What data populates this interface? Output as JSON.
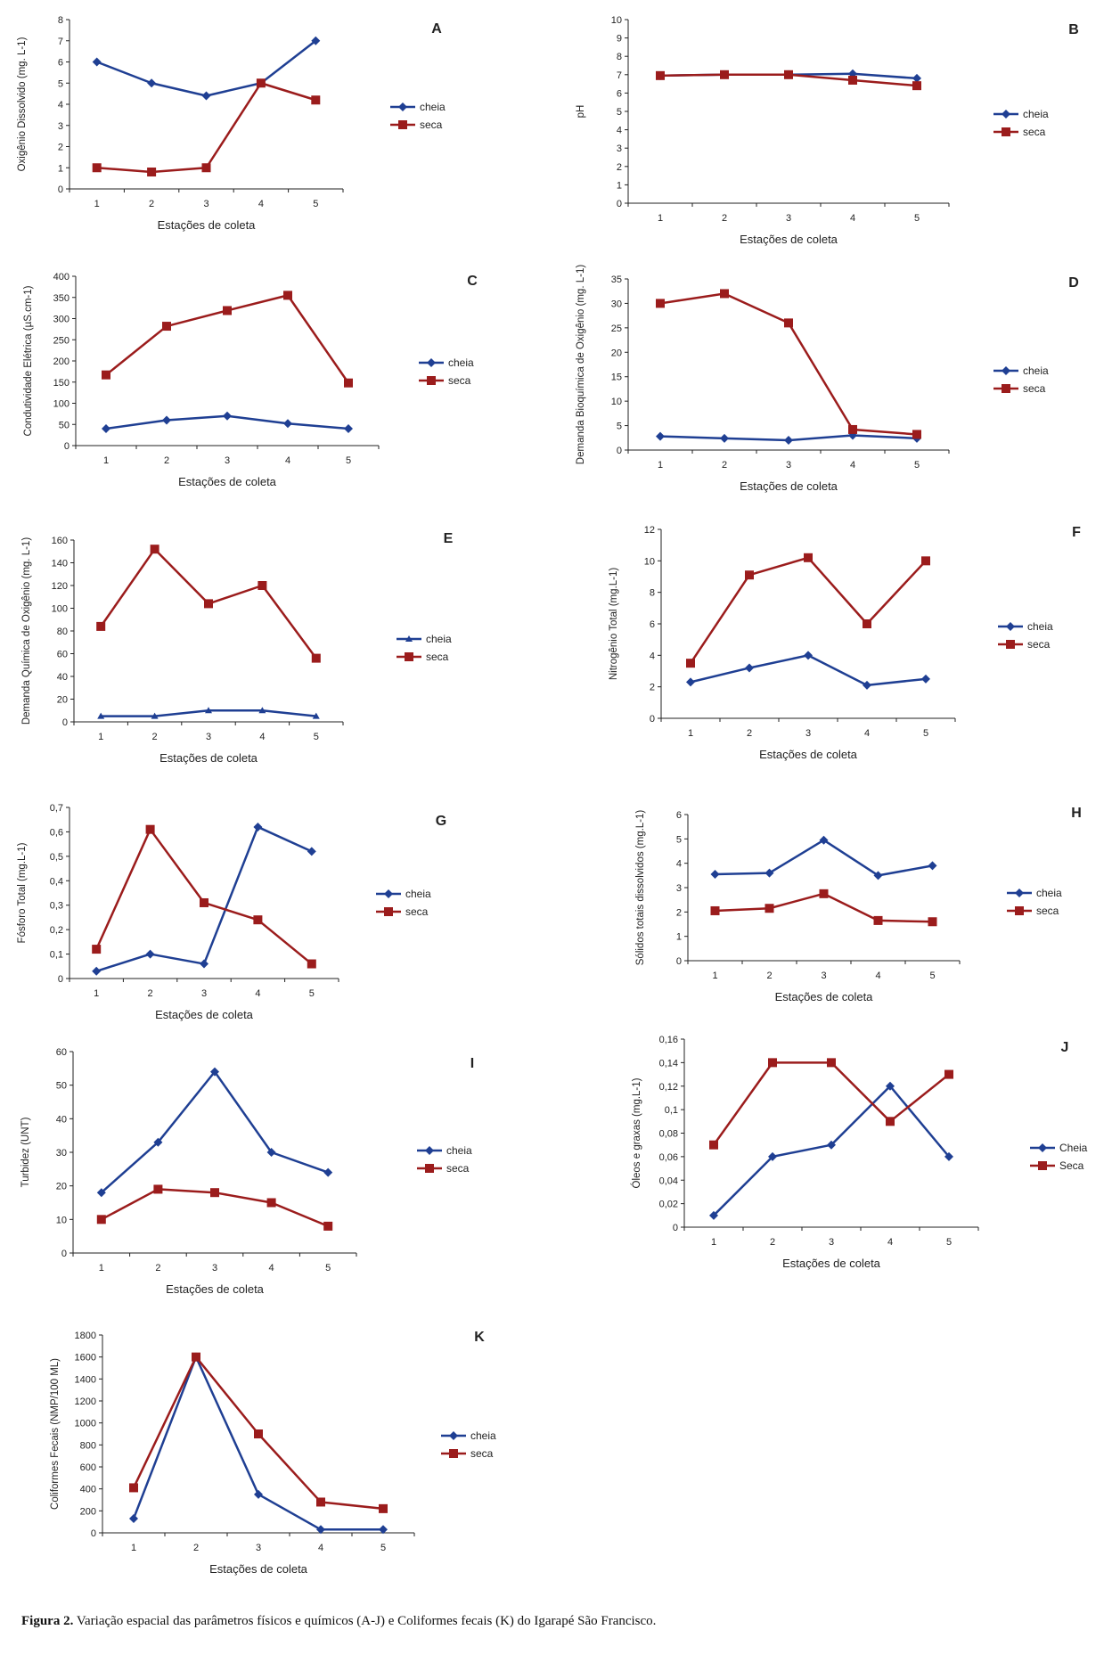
{
  "caption": {
    "label": "Figura 2.",
    "text": "Variação  espacial das parâmetros físicos e químicos (A-J) e Coliformes fecais (K) do Igarapé São Francisco."
  },
  "colors": {
    "cheia": "#1f3f93",
    "seca": "#9b1c1c",
    "axis": "#222222"
  },
  "chart_data": [
    {
      "letter": "A",
      "type": "line",
      "categories": [
        "1",
        "2",
        "3",
        "4",
        "5"
      ],
      "ylabel": "Oxigênio Dissolvido (mg. L-1)",
      "xlabel": "Estações de coleta",
      "ylim": [
        0,
        8
      ],
      "yticks": [
        "0",
        "1",
        "2",
        "3",
        "4",
        "5",
        "6",
        "7",
        "8"
      ],
      "series": [
        {
          "name": "cheia",
          "marker": "diamond",
          "values": [
            6,
            5,
            4.4,
            5,
            7
          ]
        },
        {
          "name": "seca",
          "marker": "square",
          "values": [
            1,
            0.8,
            1,
            5,
            4.2
          ]
        }
      ]
    },
    {
      "letter": "B",
      "type": "line",
      "categories": [
        "1",
        "2",
        "3",
        "4",
        "5"
      ],
      "ylabel": "pH",
      "xlabel": "Estações de coleta",
      "ylim": [
        0,
        10
      ],
      "yticks": [
        "0",
        "1",
        "2",
        "3",
        "4",
        "5",
        "6",
        "7",
        "8",
        "9",
        "10"
      ],
      "series": [
        {
          "name": "cheia",
          "marker": "diamond",
          "values": [
            6.95,
            7,
            7,
            7.05,
            6.8
          ]
        },
        {
          "name": "seca",
          "marker": "square",
          "values": [
            6.95,
            7,
            7,
            6.7,
            6.4
          ]
        }
      ]
    },
    {
      "letter": "C",
      "type": "line",
      "categories": [
        "1",
        "2",
        "3",
        "4",
        "5"
      ],
      "ylabel": "Condutividade Elétrica (µS.cm-1)",
      "xlabel": "Estações de coleta",
      "ylim": [
        0,
        400
      ],
      "yticks": [
        "0",
        "50",
        "100",
        "150",
        "200",
        "250",
        "300",
        "350",
        "400"
      ],
      "series": [
        {
          "name": "cheia",
          "marker": "diamond",
          "values": [
            40,
            60,
            70,
            52,
            40
          ]
        },
        {
          "name": "seca",
          "marker": "square",
          "values": [
            167,
            282,
            319,
            355,
            148
          ]
        }
      ]
    },
    {
      "letter": "D",
      "type": "line",
      "categories": [
        "1",
        "2",
        "3",
        "4",
        "5"
      ],
      "ylabel": "Demanda Bioquímica de Oxigênio    (mg. L-1)",
      "xlabel": "Estações de coleta",
      "ylim": [
        0,
        35
      ],
      "yticks": [
        "0",
        "5",
        "10",
        "15",
        "20",
        "25",
        "30",
        "35"
      ],
      "series": [
        {
          "name": "cheia",
          "marker": "diamond",
          "values": [
            2.8,
            2.4,
            2,
            3,
            2.4
          ]
        },
        {
          "name": "seca",
          "marker": "square",
          "values": [
            30,
            32,
            26,
            4.2,
            3.2
          ]
        }
      ]
    },
    {
      "letter": "E",
      "type": "line",
      "categories": [
        "1",
        "2",
        "3",
        "4",
        "5"
      ],
      "ylabel": "Demanda Química de Oxigênio (mg. L-1)",
      "xlabel": "Estações de coleta",
      "ylim": [
        0,
        160
      ],
      "yticks": [
        "0",
        "20",
        "40",
        "60",
        "80",
        "100",
        "120",
        "140",
        "160"
      ],
      "series": [
        {
          "name": "cheia",
          "marker": "triangle",
          "values": [
            5,
            5,
            10,
            10,
            5
          ]
        },
        {
          "name": "seca",
          "marker": "square",
          "values": [
            84,
            152,
            104,
            120,
            56
          ]
        }
      ]
    },
    {
      "letter": "F",
      "type": "line",
      "categories": [
        "1",
        "2",
        "3",
        "4",
        "5"
      ],
      "ylabel": "Nitrogênio Total (mg.L-1)",
      "xlabel": "Estações de coleta",
      "ylim": [
        0,
        12
      ],
      "yticks": [
        "0",
        "2",
        "4",
        "6",
        "8",
        "10",
        "12"
      ],
      "series": [
        {
          "name": "cheia",
          "marker": "diamond",
          "values": [
            2.3,
            3.2,
            4,
            2.1,
            2.5
          ]
        },
        {
          "name": "seca",
          "marker": "square",
          "values": [
            3.5,
            9.1,
            10.2,
            6,
            10
          ]
        }
      ]
    },
    {
      "letter": "G",
      "type": "line",
      "categories": [
        "1",
        "2",
        "3",
        "4",
        "5"
      ],
      "ylabel": "Fósforo Total (mg.L-1)",
      "xlabel": "Estações de coleta",
      "ylim": [
        0,
        0.7
      ],
      "yticks": [
        "0",
        "0,1",
        "0,2",
        "0,3",
        "0,4",
        "0,5",
        "0,6",
        "0,7"
      ],
      "series": [
        {
          "name": "cheia",
          "marker": "diamond",
          "values": [
            0.03,
            0.1,
            0.06,
            0.62,
            0.52
          ]
        },
        {
          "name": "seca",
          "marker": "square",
          "values": [
            0.12,
            0.61,
            0.31,
            0.24,
            0.06
          ]
        }
      ]
    },
    {
      "letter": "H",
      "type": "line",
      "categories": [
        "1",
        "2",
        "3",
        "4",
        "5"
      ],
      "ylabel": "Sólidos totais dissolvidos (mg.L-1)",
      "xlabel": "Estações de coleta",
      "ylim": [
        0,
        6
      ],
      "yticks": [
        "0",
        "1",
        "2",
        "3",
        "4",
        "5",
        "6"
      ],
      "series": [
        {
          "name": "cheia",
          "marker": "diamond",
          "values": [
            3.55,
            3.6,
            4.95,
            3.5,
            3.9
          ]
        },
        {
          "name": "seca",
          "marker": "square",
          "values": [
            2.05,
            2.15,
            2.75,
            1.65,
            1.6
          ]
        }
      ]
    },
    {
      "letter": "I",
      "type": "line",
      "categories": [
        "1",
        "2",
        "3",
        "4",
        "5"
      ],
      "ylabel": "Turbidez (UNT)",
      "xlabel": "Estações de coleta",
      "ylim": [
        0,
        60
      ],
      "yticks": [
        "0",
        "10",
        "20",
        "30",
        "40",
        "50",
        "60"
      ],
      "series": [
        {
          "name": "cheia",
          "marker": "diamond",
          "values": [
            18,
            33,
            54,
            30,
            24
          ]
        },
        {
          "name": "seca",
          "marker": "square",
          "values": [
            10,
            19,
            18,
            15,
            8
          ]
        }
      ]
    },
    {
      "letter": "J",
      "type": "line",
      "categories": [
        "1",
        "2",
        "3",
        "4",
        "5"
      ],
      "ylabel": "Óleos e graxas (mg.L-1)",
      "xlabel": "Estações de coleta",
      "ylim": [
        0,
        0.16
      ],
      "yticks": [
        "0",
        "0,02",
        "0,04",
        "0,06",
        "0,08",
        "0,1",
        "0,12",
        "0,14",
        "0,16"
      ],
      "series": [
        {
          "name": "Cheia",
          "marker": "diamond",
          "values": [
            0.01,
            0.06,
            0.07,
            0.12,
            0.06
          ]
        },
        {
          "name": "Seca",
          "marker": "square",
          "values": [
            0.07,
            0.14,
            0.14,
            0.09,
            0.13
          ]
        }
      ]
    },
    {
      "letter": "K",
      "type": "line",
      "categories": [
        "1",
        "2",
        "3",
        "4",
        "5"
      ],
      "ylabel": "Coliformes Fecais (NMP/100 ML)",
      "xlabel": "Estações de coleta",
      "ylim": [
        0,
        1800
      ],
      "yticks": [
        "0",
        "200",
        "400",
        "600",
        "800",
        "1000",
        "1200",
        "1400",
        "1600",
        "1800"
      ],
      "series": [
        {
          "name": "cheia",
          "marker": "diamond",
          "values": [
            130,
            1600,
            350,
            30,
            30
          ]
        },
        {
          "name": "seca",
          "marker": "square",
          "values": [
            410,
            1600,
            900,
            280,
            220
          ]
        }
      ]
    }
  ]
}
